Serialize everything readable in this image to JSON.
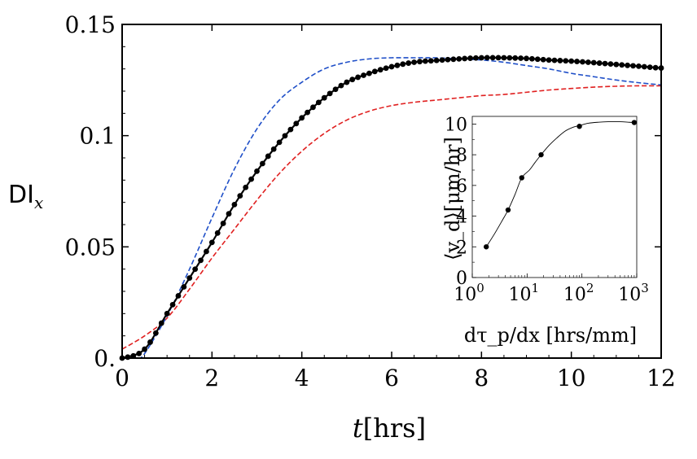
{
  "chart_data": [
    {
      "type": "line",
      "xlabel_var": "t",
      "xlabel_unit": "[hrs]",
      "ylabel_main": "DI",
      "ylabel_sub": "x",
      "xlim": [
        0,
        12
      ],
      "ylim": [
        0,
        0.15
      ],
      "x_ticks": [
        {
          "value": 0,
          "label": "0"
        },
        {
          "value": 2,
          "label": "2"
        },
        {
          "value": 4,
          "label": "4"
        },
        {
          "value": 6,
          "label": "6"
        },
        {
          "value": 8,
          "label": "8"
        },
        {
          "value": 10,
          "label": "10"
        },
        {
          "value": 12,
          "label": "12"
        }
      ],
      "y_ticks": [
        {
          "value": 0,
          "label": "0."
        },
        {
          "value": 0.05,
          "label": "0.05"
        },
        {
          "value": 0.1,
          "label": "0.1"
        },
        {
          "value": 0.15,
          "label": "0.15"
        }
      ],
      "series": [
        {
          "name": "black-dotted",
          "color": "#000000",
          "style": "solid-with-markers",
          "x": [
            0,
            0.5,
            1,
            1.5,
            2,
            2.5,
            3,
            3.5,
            4,
            4.5,
            5,
            5.5,
            6,
            6.5,
            7,
            7.5,
            8,
            8.5,
            9,
            9.5,
            10,
            10.5,
            11,
            11.5,
            12
          ],
          "y": [
            0.0,
            0.004,
            0.02,
            0.036,
            0.052,
            0.069,
            0.084,
            0.097,
            0.108,
            0.117,
            0.124,
            0.128,
            0.131,
            0.133,
            0.1338,
            0.1345,
            0.135,
            0.135,
            0.1347,
            0.134,
            0.1335,
            0.1328,
            0.132,
            0.1312,
            0.1304
          ]
        },
        {
          "name": "blue-dashed",
          "color": "#1f4fc8",
          "style": "dashed",
          "x": [
            0.35,
            0.5,
            1,
            1.5,
            2,
            2.5,
            3,
            3.5,
            4,
            4.5,
            5,
            5.5,
            6,
            6.5,
            7,
            7.5,
            8,
            8.5,
            9,
            9.5,
            10,
            10.5,
            11,
            11.5,
            12
          ],
          "y": [
            0.0,
            0.002,
            0.019,
            0.04,
            0.063,
            0.085,
            0.103,
            0.116,
            0.124,
            0.13,
            0.133,
            0.1345,
            0.135,
            0.135,
            0.135,
            0.1345,
            0.134,
            0.133,
            0.1315,
            0.13,
            0.128,
            0.1265,
            0.125,
            0.1238,
            0.1228
          ]
        },
        {
          "name": "red-dashed",
          "color": "#e02020",
          "style": "dashed",
          "x": [
            0,
            0.5,
            1,
            1.5,
            2,
            2.5,
            3,
            3.5,
            4,
            4.5,
            5,
            5.5,
            6,
            6.5,
            7,
            7.5,
            8,
            8.5,
            9,
            9.5,
            10,
            10.5,
            11,
            11.5,
            12
          ],
          "y": [
            0.004,
            0.01,
            0.018,
            0.031,
            0.045,
            0.058,
            0.071,
            0.083,
            0.093,
            0.101,
            0.107,
            0.111,
            0.1135,
            0.115,
            0.116,
            0.117,
            0.118,
            0.1185,
            0.1195,
            0.1205,
            0.1212,
            0.1218,
            0.1222,
            0.1224,
            0.1224
          ]
        }
      ]
    },
    {
      "type": "scatter",
      "inset": true,
      "xscale": "log",
      "xlabel": "dτ_p/dx [hrs/mm]",
      "ylabel": "⟨v_d⟩[μm/hr]",
      "xlim_log10": [
        0,
        3
      ],
      "ylim": [
        0,
        10.5
      ],
      "x_ticks": [
        {
          "exp": 0,
          "base": "10",
          "sup": "0"
        },
        {
          "exp": 1,
          "base": "10",
          "sup": "1"
        },
        {
          "exp": 2,
          "base": "10",
          "sup": "2"
        },
        {
          "exp": 3,
          "base": "10",
          "sup": "3"
        }
      ],
      "y_ticks": [
        {
          "value": 0,
          "label": "0"
        },
        {
          "value": 2,
          "label": "2"
        },
        {
          "value": 4,
          "label": "4"
        },
        {
          "value": 6,
          "label": "6"
        },
        {
          "value": 8,
          "label": "8"
        },
        {
          "value": 10,
          "label": "10"
        }
      ],
      "points": [
        {
          "x": 1.8,
          "y": 2.0
        },
        {
          "x": 4.5,
          "y": 4.4
        },
        {
          "x": 8.0,
          "y": 6.5
        },
        {
          "x": 18,
          "y": 8.0
        },
        {
          "x": 90,
          "y": 9.85
        },
        {
          "x": 900,
          "y": 10.1
        }
      ],
      "fit_curve": {
        "x": [
          1.8,
          2.5,
          3.5,
          4.5,
          6,
          8,
          11,
          14,
          18,
          25,
          35,
          50,
          70,
          90,
          130,
          200,
          300,
          500,
          700,
          900
        ],
        "y": [
          2.0,
          2.8,
          3.7,
          4.4,
          5.4,
          6.5,
          7.0,
          7.5,
          8.0,
          8.6,
          9.1,
          9.55,
          9.8,
          9.9,
          10.05,
          10.12,
          10.15,
          10.15,
          10.12,
          10.1
        ]
      }
    }
  ]
}
